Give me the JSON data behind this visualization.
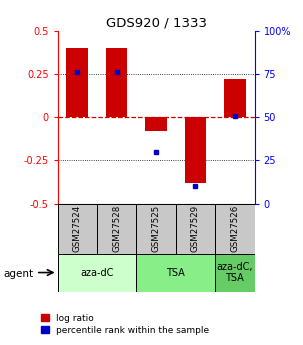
{
  "title": "GDS920 / 1333",
  "samples": [
    "GSM27524",
    "GSM27528",
    "GSM27525",
    "GSM27529",
    "GSM27526"
  ],
  "log_ratios": [
    0.4,
    0.4,
    -0.08,
    -0.38,
    0.22
  ],
  "percentile_ranks": [
    76,
    76,
    30,
    10,
    51
  ],
  "ylim_left": [
    -0.5,
    0.5
  ],
  "yticks_left": [
    -0.5,
    -0.25,
    0,
    0.25,
    0.5
  ],
  "ytick_labels_left": [
    "-0.5",
    "-0.25",
    "0",
    "0.25",
    "0.5"
  ],
  "yticks_right": [
    0,
    25,
    50,
    75,
    100
  ],
  "ytick_labels_right": [
    "0",
    "25",
    "50",
    "75",
    "100%"
  ],
  "bar_color": "#cc0000",
  "dot_color": "#0000cc",
  "hline_color": "#cc0000",
  "grid_color": "#000000",
  "agent_groups": [
    {
      "label": "aza-dC",
      "start": 0,
      "end": 2,
      "color": "#ccffcc"
    },
    {
      "label": "TSA",
      "start": 2,
      "end": 4,
      "color": "#88ee88"
    },
    {
      "label": "aza-dC,\nTSA",
      "start": 4,
      "end": 5,
      "color": "#66cc66"
    }
  ],
  "agent_label": "agent",
  "legend_log_ratio": "log ratio",
  "legend_percentile": "percentile rank within the sample",
  "bar_width": 0.55,
  "sample_box_color": "#c8c8c8"
}
